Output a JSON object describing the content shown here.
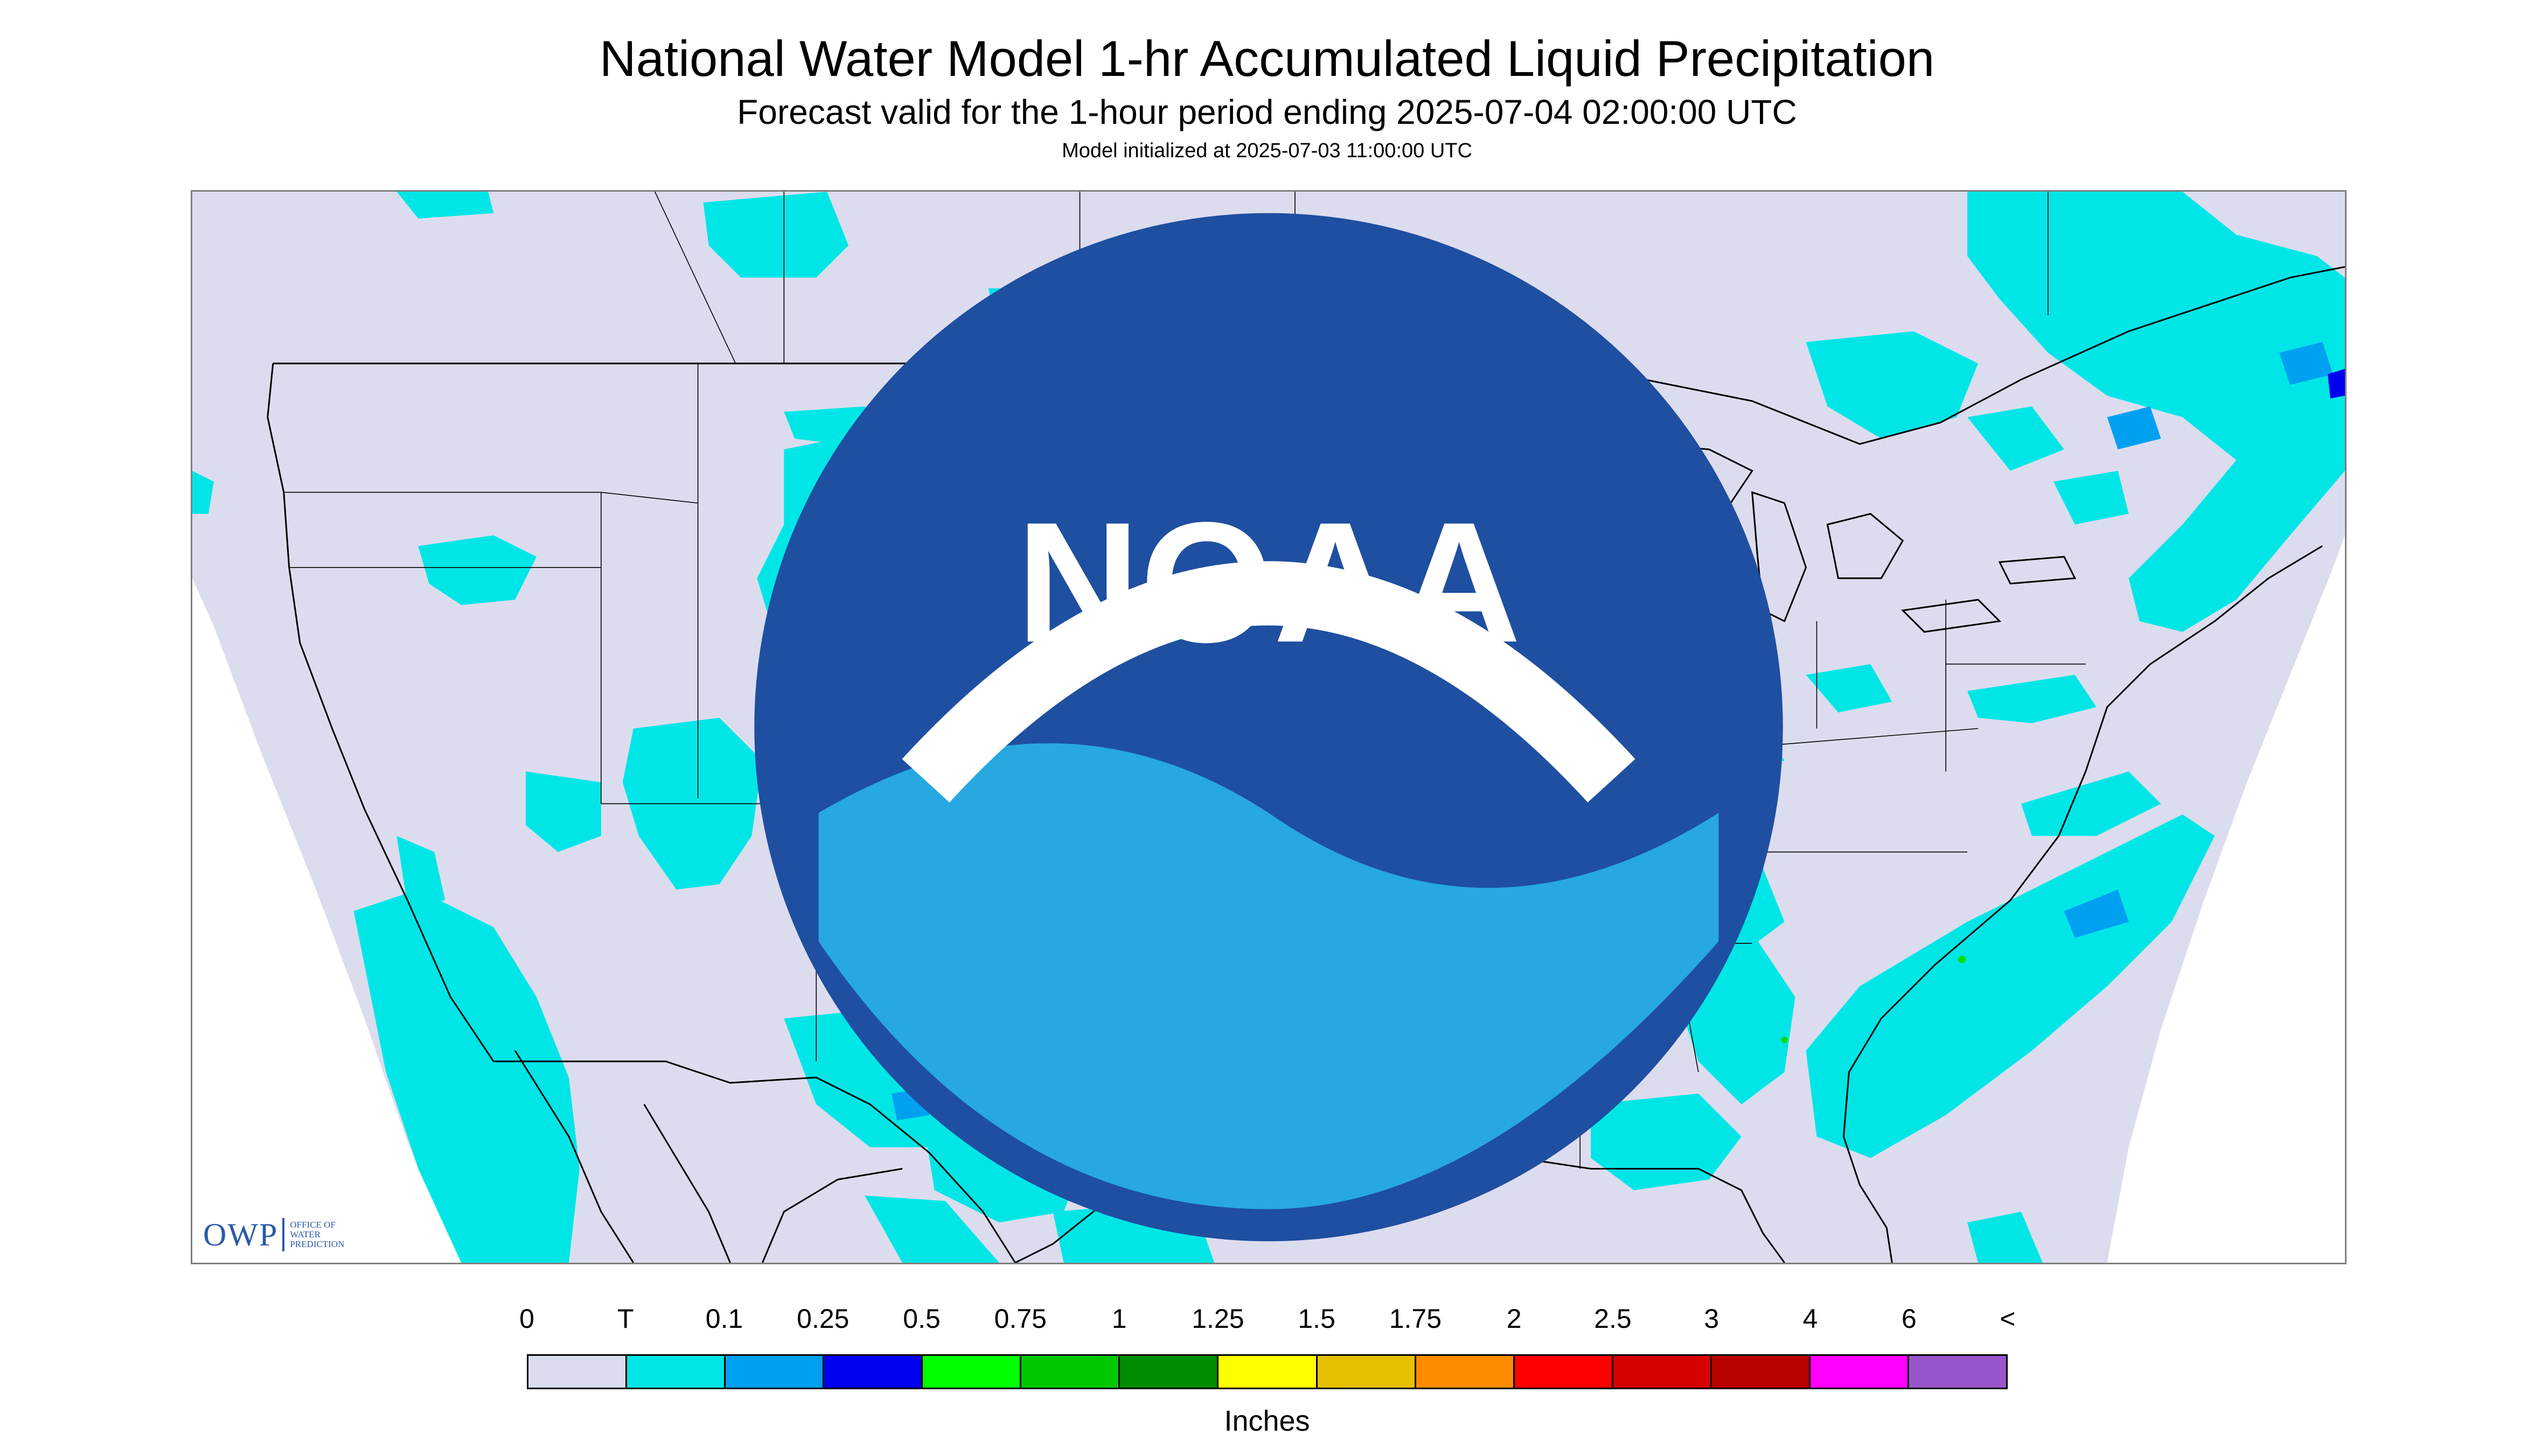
{
  "header": {
    "title": "National Water Model 1-hr Accumulated Liquid Precipitation",
    "subtitle": "Forecast valid for the 1-hour period ending 2025-07-04 02:00:00 UTC",
    "init": "Model initialized at 2025-07-03 11:00:00 UTC"
  },
  "map": {
    "background_color": "#dcdcef",
    "outside_color": "#ffffff",
    "boundary_color": "#000000",
    "precip_colors": {
      "trace": "#00e6e6",
      "light": "#00a0f0",
      "moderate": "#0000f0",
      "heavy": "#00e000"
    }
  },
  "logos": {
    "owp": {
      "letters": "OWP",
      "line1": "OFFICE OF",
      "line2": "WATER",
      "line3": "PREDICTION"
    },
    "noaa": {
      "text": "NOAA"
    }
  },
  "legend": {
    "labels": [
      "0",
      "T",
      "0.1",
      "0.25",
      "0.5",
      "0.75",
      "1",
      "1.25",
      "1.5",
      "1.75",
      "2",
      "2.5",
      "3",
      "4",
      "6",
      "<"
    ],
    "colors": [
      "#dcdcef",
      "#00e6e6",
      "#00a0f0",
      "#0000f0",
      "#00ff00",
      "#00c800",
      "#008c00",
      "#ffff00",
      "#e6c000",
      "#ff8c00",
      "#ff0000",
      "#d70000",
      "#b90000",
      "#ff00ff",
      "#9955cc"
    ],
    "units": "Inches"
  }
}
